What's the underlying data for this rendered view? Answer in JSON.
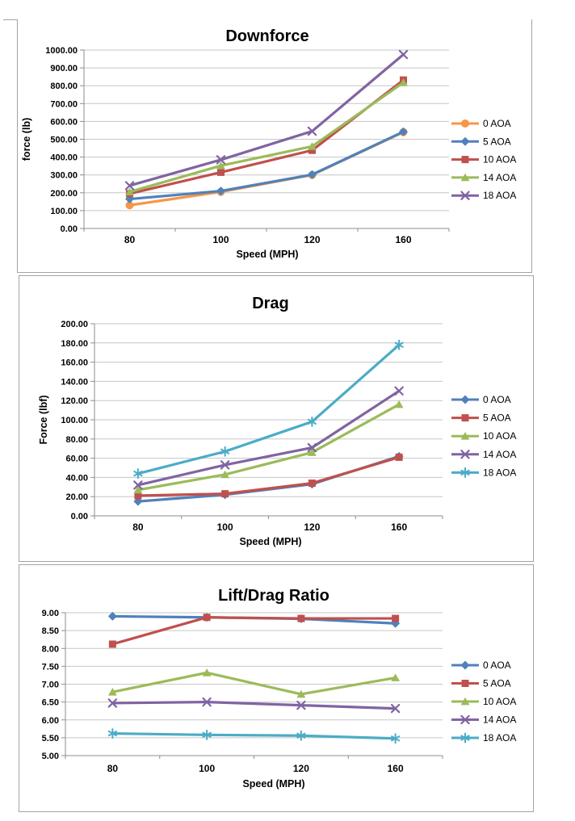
{
  "style": {
    "background": "#ffffff",
    "panel_border_color": "#a3a3a3",
    "gridline_color": "#c6c6c6",
    "axis_color": "#8e8e8e",
    "text_color": "#000000"
  },
  "chart_data": [
    {
      "type": "line",
      "title": "Downforce",
      "ylabel": "force (lb)",
      "xlabel": "Speed (MPH)",
      "y_min": 0,
      "y_max": 1000,
      "y_step": 100,
      "ylim": [
        0,
        1000
      ],
      "grid": true,
      "legend_position": "right",
      "y_ticks": [
        "1000.00",
        "900.00",
        "800.00",
        "700.00",
        "600.00",
        "500.00",
        "400.00",
        "300.00",
        "200.00",
        "100.00",
        "0.00"
      ],
      "categories": [
        "80",
        "100",
        "120",
        "160"
      ],
      "series": [
        {
          "name": "0 AOA",
          "color": "#F79646",
          "marker": "circle",
          "values": [
            130,
            205,
            300,
            540
          ]
        },
        {
          "name": "5 AOA",
          "color": "#4F81BD",
          "marker": "diamond",
          "values": [
            165,
            210,
            302,
            542
          ]
        },
        {
          "name": "10 AOA",
          "color": "#C0504D",
          "marker": "square",
          "values": [
            195,
            315,
            438,
            832
          ]
        },
        {
          "name": "14 AOA",
          "color": "#9BBB59",
          "marker": "triangle",
          "values": [
            205,
            352,
            460,
            818
          ]
        },
        {
          "name": "18 AOA",
          "color": "#8064A2",
          "marker": "x",
          "values": [
            240,
            385,
            545,
            975
          ]
        }
      ]
    },
    {
      "type": "line",
      "title": "Drag",
      "ylabel": "Force (lbf)",
      "xlabel": "Speed (MPH)",
      "y_min": 0,
      "y_max": 200,
      "y_step": 20,
      "ylim": [
        0,
        200
      ],
      "grid": true,
      "legend_position": "right",
      "y_ticks": [
        "200.00",
        "180.00",
        "160.00",
        "140.00",
        "120.00",
        "100.00",
        "80.00",
        "60.00",
        "40.00",
        "20.00",
        "0.00"
      ],
      "categories": [
        "80",
        "100",
        "120",
        "160"
      ],
      "series": [
        {
          "name": "0 AOA",
          "color": "#4F81BD",
          "marker": "diamond",
          "values": [
            15,
            22,
            33,
            62
          ]
        },
        {
          "name": "5 AOA",
          "color": "#C0504D",
          "marker": "square",
          "values": [
            21,
            23,
            34,
            61
          ]
        },
        {
          "name": "10 AOA",
          "color": "#9BBB59",
          "marker": "triangle",
          "values": [
            27,
            43,
            66,
            116
          ]
        },
        {
          "name": "14 AOA",
          "color": "#8064A2",
          "marker": "x",
          "values": [
            32,
            53,
            71,
            130
          ]
        },
        {
          "name": "18 AOA",
          "color": "#4BACC6",
          "marker": "star",
          "values": [
            44,
            67,
            98,
            178
          ]
        }
      ]
    },
    {
      "type": "line",
      "title": "Lift/Drag Ratio",
      "ylabel": "",
      "xlabel": "Speed (MPH)",
      "y_min": 5,
      "y_max": 9,
      "y_step": 0.5,
      "ylim": [
        5,
        9
      ],
      "grid": true,
      "legend_position": "right",
      "y_ticks": [
        "9.00",
        "8.50",
        "8.00",
        "7.50",
        "7.00",
        "6.50",
        "6.00",
        "5.50",
        "5.00"
      ],
      "categories": [
        "80",
        "100",
        "120",
        "160"
      ],
      "series": [
        {
          "name": "0 AOA",
          "color": "#4F81BD",
          "marker": "diamond",
          "values": [
            8.9,
            8.87,
            8.83,
            8.7
          ]
        },
        {
          "name": "5 AOA",
          "color": "#C0504D",
          "marker": "square",
          "values": [
            8.12,
            8.87,
            8.84,
            8.84
          ]
        },
        {
          "name": "10 AOA",
          "color": "#9BBB59",
          "marker": "triangle",
          "values": [
            6.78,
            7.32,
            6.72,
            7.18
          ]
        },
        {
          "name": "14 AOA",
          "color": "#8064A2",
          "marker": "x",
          "values": [
            6.47,
            6.5,
            6.41,
            6.32
          ]
        },
        {
          "name": "18 AOA",
          "color": "#4BACC6",
          "marker": "star",
          "values": [
            5.62,
            5.58,
            5.56,
            5.48
          ]
        }
      ]
    }
  ]
}
